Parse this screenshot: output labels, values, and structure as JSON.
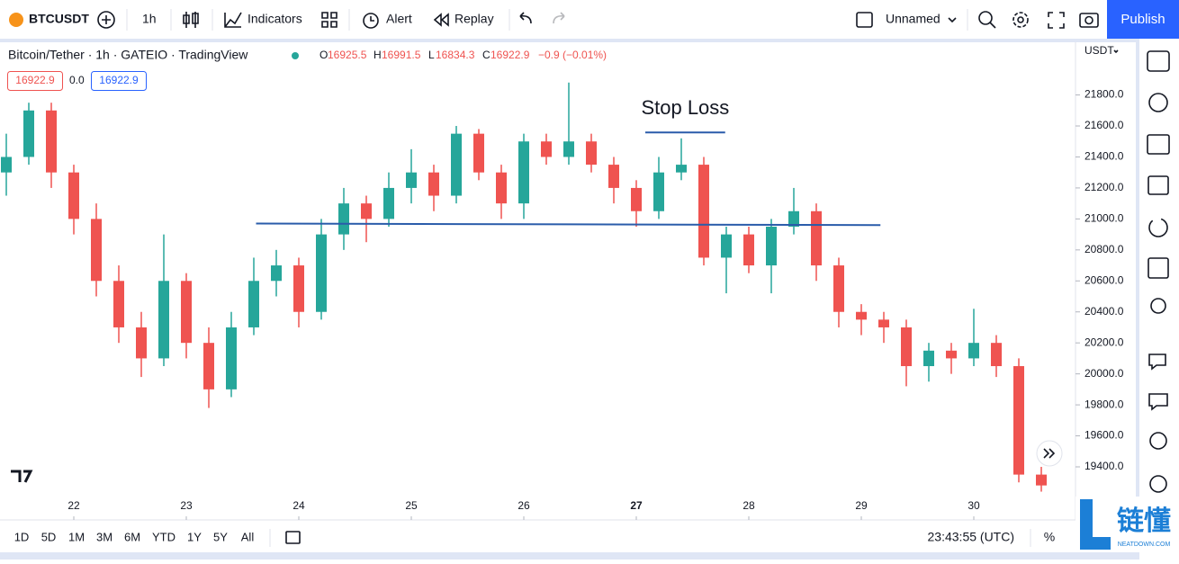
{
  "toolbar": {
    "symbol": "BTCUSDT",
    "interval": "1h",
    "indicators": "Indicators",
    "alert": "Alert",
    "replay": "Replay",
    "layout_name": "Unnamed",
    "publish": "Publish"
  },
  "legend": {
    "title": "Bitcoin/Tether · 1h · GATEIO · TradingView",
    "o_label": "O",
    "o": "16925.5",
    "h_label": "H",
    "h": "16991.5",
    "l_label": "L",
    "l": "16834.3",
    "c_label": "C",
    "c": "16922.9",
    "change": "−0.9 (−0.01%)",
    "bid": "16922.9",
    "spread": "0.0",
    "ask": "16922.9"
  },
  "price_axis": {
    "currency": "USDT"
  },
  "bottom_bar": {
    "ranges": [
      "1D",
      "5D",
      "1M",
      "3M",
      "6M",
      "YTD",
      "1Y",
      "5Y",
      "All"
    ],
    "time": "23:43:55 (UTC)",
    "percent": "%"
  },
  "watermark": {
    "brand": "链懂",
    "site": "NEATDOWN.COM"
  },
  "chart_data": {
    "type": "candlestick",
    "up_color": "#26a69a",
    "down_color": "#ef5350",
    "xlim": [
      21.344,
      30.904
    ],
    "xticks": [
      {
        "value": 22,
        "label": "22"
      },
      {
        "value": 23,
        "label": "23"
      },
      {
        "value": 24,
        "label": "24"
      },
      {
        "value": 25,
        "label": "25"
      },
      {
        "value": 26,
        "label": "26"
      },
      {
        "value": 27,
        "label": "27"
      },
      {
        "value": 28,
        "label": "28"
      },
      {
        "value": 29,
        "label": "29"
      },
      {
        "value": 30,
        "label": "30"
      }
    ],
    "bold_xtick": 27,
    "ylim": [
      19220,
      22140
    ],
    "yticks": [
      {
        "value": 19400,
        "label": "19400.0"
      },
      {
        "value": 19600,
        "label": "19600.0"
      },
      {
        "value": 19800,
        "label": "19800.0"
      },
      {
        "value": 20000,
        "label": "20000.0"
      },
      {
        "value": 20200,
        "label": "20200.0"
      },
      {
        "value": 20400,
        "label": "20400.0"
      },
      {
        "value": 20600,
        "label": "20600.0"
      },
      {
        "value": 20800,
        "label": "20800.0"
      },
      {
        "value": 21000,
        "label": "21000.0"
      },
      {
        "value": 21200,
        "label": "21200.0"
      },
      {
        "value": 21400,
        "label": "21400.0"
      },
      {
        "value": 21600,
        "label": "21600.0"
      },
      {
        "value": 21800,
        "label": "21800.0"
      }
    ],
    "x": [
      21.4,
      21.6,
      21.8,
      22.0,
      22.2,
      22.4,
      22.6,
      22.8,
      23.0,
      23.2,
      23.4,
      23.6,
      23.8,
      24.0,
      24.2,
      24.4,
      24.6,
      24.8,
      25.0,
      25.2,
      25.4,
      25.6,
      25.8,
      26.0,
      26.2,
      26.4,
      26.6,
      26.8,
      27.0,
      27.2,
      27.4,
      27.6,
      27.8,
      28.0,
      28.2,
      28.4,
      28.6,
      28.8,
      29.0,
      29.2,
      29.4,
      29.6,
      29.8,
      30.0,
      30.2,
      30.4,
      30.6
    ],
    "candles": [
      [
        21300,
        21550,
        21150,
        21400
      ],
      [
        21400,
        21750,
        21350,
        21700
      ],
      [
        21700,
        21750,
        21200,
        21300
      ],
      [
        21300,
        21350,
        20900,
        21000
      ],
      [
        21000,
        21100,
        20500,
        20600
      ],
      [
        20600,
        20700,
        20200,
        20300
      ],
      [
        20300,
        20400,
        19980,
        20100
      ],
      [
        20100,
        20900,
        20050,
        20600
      ],
      [
        20600,
        20650,
        20100,
        20200
      ],
      [
        20200,
        20300,
        19780,
        19900
      ],
      [
        19900,
        20400,
        19850,
        20300
      ],
      [
        20300,
        20750,
        20250,
        20600
      ],
      [
        20600,
        20800,
        20500,
        20700
      ],
      [
        20700,
        20750,
        20300,
        20400
      ],
      [
        20400,
        21000,
        20350,
        20900
      ],
      [
        20900,
        21200,
        20800,
        21100
      ],
      [
        21100,
        21150,
        20850,
        21000
      ],
      [
        21000,
        21300,
        20950,
        21200
      ],
      [
        21200,
        21450,
        21100,
        21300
      ],
      [
        21300,
        21350,
        21050,
        21150
      ],
      [
        21150,
        21600,
        21100,
        21550
      ],
      [
        21550,
        21580,
        21250,
        21300
      ],
      [
        21300,
        21350,
        21000,
        21100
      ],
      [
        21100,
        21550,
        21000,
        21500
      ],
      [
        21500,
        21550,
        21350,
        21400
      ],
      [
        21400,
        21880,
        21350,
        21500
      ],
      [
        21500,
        21550,
        21300,
        21350
      ],
      [
        21350,
        21400,
        21100,
        21200
      ],
      [
        21200,
        21250,
        20950,
        21050
      ],
      [
        21050,
        21400,
        21000,
        21300
      ],
      [
        21300,
        21520,
        21250,
        21350
      ],
      [
        21350,
        21400,
        20700,
        20750
      ],
      [
        20750,
        20950,
        20520,
        20900
      ],
      [
        20900,
        20950,
        20650,
        20700
      ],
      [
        20700,
        21000,
        20520,
        20950
      ],
      [
        20950,
        21200,
        20900,
        21050
      ],
      [
        21050,
        21100,
        20600,
        20700
      ],
      [
        20700,
        20750,
        20300,
        20400
      ],
      [
        20400,
        20450,
        20250,
        20350
      ],
      [
        20350,
        20400,
        20200,
        20300
      ],
      [
        20300,
        20350,
        19920,
        20050
      ],
      [
        20050,
        20200,
        19950,
        20150
      ],
      [
        20150,
        20200,
        20000,
        20100
      ],
      [
        20100,
        20420,
        20050,
        20200
      ],
      [
        20200,
        20250,
        19980,
        20050
      ],
      [
        20050,
        20100,
        19300,
        19350
      ],
      [
        19350,
        19400,
        19240,
        19280
      ]
    ],
    "support_line": {
      "color": "#2a5caa",
      "x": [
        23.62,
        29.17
      ],
      "y": [
        20970,
        20960
      ]
    },
    "stop_loss": {
      "label": "Stop Loss",
      "color": "#2a5caa",
      "x": [
        27.08,
        27.79
      ],
      "y": [
        21558,
        21558
      ]
    }
  }
}
